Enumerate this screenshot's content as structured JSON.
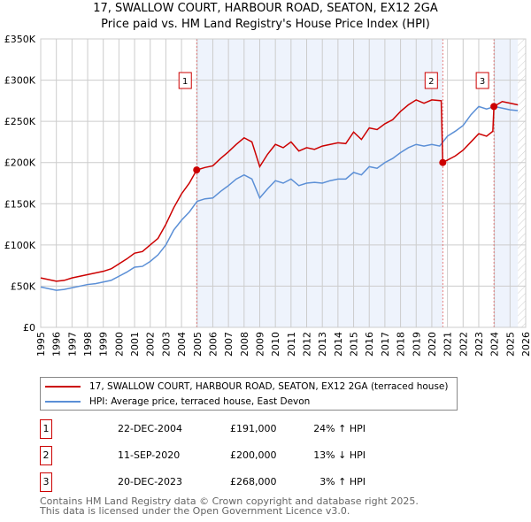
{
  "title": "17, SWALLOW COURT, HARBOUR ROAD, SEATON, EX12 2GA",
  "subtitle": "Price paid vs. HM Land Registry's House Price Index (HPI)",
  "chart_data": {
    "type": "line",
    "xlim": [
      1995,
      2026
    ],
    "ylim": [
      0,
      350
    ],
    "y_ticks": [
      {
        "v": 0,
        "label": "£0"
      },
      {
        "v": 50,
        "label": "£50K"
      },
      {
        "v": 100,
        "label": "£100K"
      },
      {
        "v": 150,
        "label": "£150K"
      },
      {
        "v": 200,
        "label": "£200K"
      },
      {
        "v": 250,
        "label": "£250K"
      },
      {
        "v": 300,
        "label": "£300K"
      },
      {
        "v": 350,
        "label": "£350K"
      }
    ],
    "x_ticks": [
      "1995",
      "1996",
      "1997",
      "1998",
      "1999",
      "2000",
      "2001",
      "2002",
      "2003",
      "2004",
      "2005",
      "2006",
      "2007",
      "2008",
      "2009",
      "2010",
      "2011",
      "2012",
      "2013",
      "2014",
      "2015",
      "2016",
      "2017",
      "2018",
      "2019",
      "2020",
      "2021",
      "2022",
      "2023",
      "2024",
      "2025",
      "2026"
    ],
    "series": [
      {
        "name": "17, SWALLOW COURT, HARBOUR ROAD, SEATON, EX12 2GA (terraced house)",
        "color": "#cc0000",
        "x": [
          1995,
          1995.5,
          1996,
          1996.5,
          1997,
          1997.5,
          1998,
          1998.5,
          1999,
          1999.5,
          2000,
          2000.5,
          2001,
          2001.5,
          2002,
          2002.5,
          2003,
          2003.5,
          2004,
          2004.5,
          2004.97,
          2005.5,
          2006,
          2006.5,
          2007,
          2007.5,
          2008,
          2008.5,
          2009,
          2009.5,
          2010,
          2010.5,
          2011,
          2011.5,
          2012,
          2012.5,
          2013,
          2013.5,
          2014,
          2014.5,
          2015,
          2015.5,
          2016,
          2016.5,
          2017,
          2017.5,
          2018,
          2018.5,
          2019,
          2019.5,
          2020,
          2020.6,
          2020.7,
          2021,
          2021.5,
          2022,
          2022.5,
          2023,
          2023.5,
          2023.9,
          2023.97,
          2024.5,
          2025,
          2025.5
        ],
        "y": [
          60,
          58,
          56,
          57,
          60,
          62,
          64,
          66,
          68,
          71,
          77,
          83,
          90,
          92,
          100,
          108,
          125,
          145,
          162,
          175,
          191,
          194,
          196,
          205,
          213,
          222,
          230,
          225,
          195,
          210,
          222,
          218,
          225,
          214,
          218,
          216,
          220,
          222,
          224,
          223,
          237,
          228,
          242,
          240,
          247,
          252,
          262,
          270,
          276,
          272,
          276,
          275,
          200,
          203,
          208,
          215,
          225,
          235,
          232,
          238,
          268,
          274,
          272,
          270
        ]
      },
      {
        "name": "HPI: Average price, terraced house, East Devon",
        "color": "#5b8fd6",
        "x": [
          1995,
          1995.5,
          1996,
          1996.5,
          1997,
          1997.5,
          1998,
          1998.5,
          1999,
          1999.5,
          2000,
          2000.5,
          2001,
          2001.5,
          2002,
          2002.5,
          2003,
          2003.5,
          2004,
          2004.5,
          2005,
          2005.5,
          2006,
          2006.5,
          2007,
          2007.5,
          2008,
          2008.5,
          2009,
          2009.5,
          2010,
          2010.5,
          2011,
          2011.5,
          2012,
          2012.5,
          2013,
          2013.5,
          2014,
          2014.5,
          2015,
          2015.5,
          2016,
          2016.5,
          2017,
          2017.5,
          2018,
          2018.5,
          2019,
          2019.5,
          2020,
          2020.5,
          2021,
          2021.5,
          2022,
          2022.5,
          2023,
          2023.5,
          2024,
          2024.5,
          2025,
          2025.5
        ],
        "y": [
          49,
          47,
          45,
          46,
          48,
          50,
          52,
          53,
          55,
          57,
          62,
          67,
          73,
          74,
          80,
          88,
          100,
          118,
          130,
          140,
          153,
          156,
          157,
          165,
          172,
          180,
          185,
          180,
          157,
          168,
          178,
          175,
          180,
          172,
          175,
          176,
          175,
          178,
          180,
          180,
          188,
          185,
          195,
          193,
          200,
          205,
          212,
          218,
          222,
          220,
          222,
          220,
          232,
          238,
          245,
          258,
          268,
          265,
          268,
          266,
          264,
          263
        ]
      }
    ],
    "sales": [
      {
        "label": "1",
        "x": 2004.97,
        "y": 191
      },
      {
        "label": "2",
        "x": 2020.7,
        "y": 200
      },
      {
        "label": "3",
        "x": 2023.97,
        "y": 268
      }
    ],
    "shaded": [
      [
        2004.97,
        2020.7
      ],
      [
        2023.97,
        2025.5
      ]
    ],
    "hatched_from": 2025.5,
    "grid": true,
    "legend": "bottom"
  },
  "legend": {
    "items": [
      {
        "label": "17, SWALLOW COURT, HARBOUR ROAD, SEATON, EX12 2GA (terraced house)",
        "color": "#cc0000"
      },
      {
        "label": "HPI: Average price, terraced house, East Devon",
        "color": "#5b8fd6"
      }
    ]
  },
  "sales": [
    {
      "num": "1",
      "date": "22-DEC-2004",
      "price": "£191,000",
      "hpi": "24% ↑ HPI"
    },
    {
      "num": "2",
      "date": "11-SEP-2020",
      "price": "£200,000",
      "hpi": "13% ↓ HPI"
    },
    {
      "num": "3",
      "date": "20-DEC-2023",
      "price": "£268,000",
      "hpi": "3% ↑ HPI"
    }
  ],
  "footer": {
    "line1": "Contains HM Land Registry data © Crown copyright and database right 2025.",
    "line2": "This data is licensed under the Open Government Licence v3.0."
  }
}
